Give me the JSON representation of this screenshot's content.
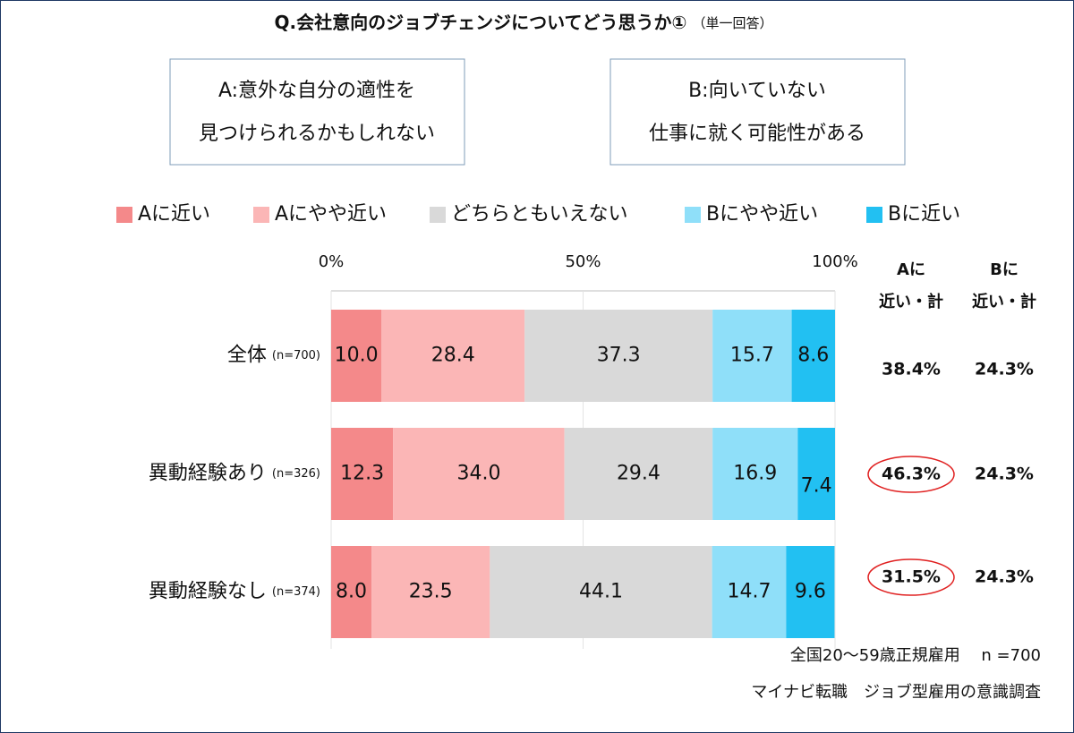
{
  "chart_data": {
    "type": "stacked_barh",
    "title": "Q.会社意向のジョブチェンジについてどう思うか①",
    "subtitle": "（単一回答）",
    "option_a": [
      "A:意外な自分の適性を",
      "見つけられるかもしれない"
    ],
    "option_b": [
      "B:向いていない",
      "仕事に就く可能性がある"
    ],
    "categories": [
      "全体",
      "異動経験あり",
      "異動経験なし"
    ],
    "sample_sizes": [
      "(n=700)",
      "(n=326)",
      "(n=374)"
    ],
    "series": [
      {
        "name": "Aに近い",
        "color": "#f4898a",
        "values": [
          10.0,
          12.3,
          8.0
        ],
        "value_labels": [
          "10.0",
          "12.3",
          "8.0"
        ]
      },
      {
        "name": "Aにやや近い",
        "color": "#fbb6b6",
        "values": [
          28.4,
          34.0,
          23.5
        ],
        "value_labels": [
          "28.4",
          "34.0",
          "23.5"
        ]
      },
      {
        "name": "どちらともいえない",
        "color": "#d9d9d9",
        "values": [
          37.3,
          29.4,
          44.1
        ],
        "value_labels": [
          "37.3",
          "29.4",
          "44.1"
        ]
      },
      {
        "name": "Bにやや近い",
        "color": "#8fdff9",
        "values": [
          15.7,
          16.9,
          14.7
        ],
        "value_labels": [
          "15.7",
          "16.9",
          "14.7"
        ]
      },
      {
        "name": "Bに近い",
        "color": "#22c0f2",
        "values": [
          8.6,
          7.4,
          9.6
        ],
        "value_labels": [
          "8.6",
          "7.4",
          "9.6"
        ]
      }
    ],
    "xlim": [
      0,
      100
    ],
    "xticks": [
      {
        "value": 0,
        "label": "0%"
      },
      {
        "value": 50,
        "label": "50%"
      },
      {
        "value": 100,
        "label": "100%"
      }
    ],
    "grid": true,
    "totals": [
      {
        "header": [
          "Aに",
          "近い・計"
        ],
        "values": [
          38.4,
          46.3,
          31.5
        ],
        "value_labels": [
          "38.4%",
          "46.3%",
          "31.5%"
        ],
        "highlighted": [
          false,
          true,
          true
        ]
      },
      {
        "header": [
          "Bに",
          "近い・計"
        ],
        "values": [
          24.3,
          24.3,
          24.3
        ],
        "value_labels": [
          "24.3%",
          "24.3%",
          "24.3%"
        ],
        "highlighted": [
          false,
          false,
          false
        ]
      }
    ],
    "notes": [
      "全国20～59歳正規雇用　 n =700",
      "マイナビ転職　ジョブ型雇用の意識調査"
    ]
  }
}
